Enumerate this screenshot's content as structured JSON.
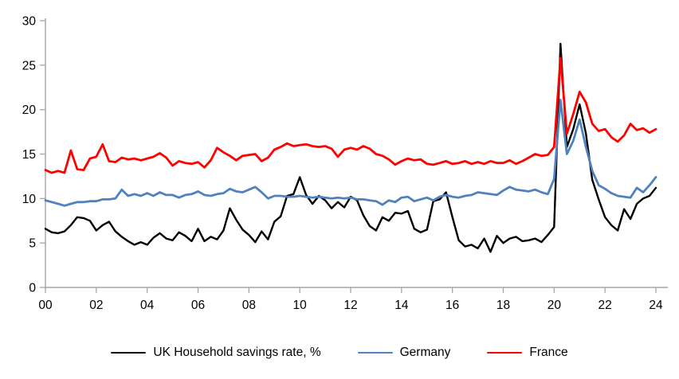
{
  "chart_data": {
    "type": "line",
    "title": "",
    "grid": false,
    "legend_position": "bottom",
    "x_axis": {
      "start_year": 2000,
      "step_years": 0.25,
      "tick_every_quarters": 8,
      "tick_labels": [
        "00",
        "02",
        "04",
        "06",
        "08",
        "10",
        "12",
        "14",
        "16",
        "18",
        "20",
        "22",
        "24"
      ]
    },
    "y_axis": {
      "min": 0,
      "max": 30,
      "tick_interval": 5,
      "tick_labels": [
        "0",
        "5",
        "10",
        "15",
        "20",
        "25",
        "30"
      ]
    },
    "axis_color": "#a6a6a6",
    "series": [
      {
        "name": "UK Household savings rate, %",
        "color": "#000000",
        "stroke_width": 2.4,
        "values": [
          6.6,
          6.2,
          6.1,
          6.3,
          7.0,
          7.9,
          7.8,
          7.5,
          6.4,
          7.0,
          7.4,
          6.3,
          5.7,
          5.2,
          4.8,
          5.1,
          4.8,
          5.6,
          6.1,
          5.5,
          5.3,
          6.2,
          5.8,
          5.2,
          6.6,
          5.2,
          5.7,
          5.4,
          6.4,
          8.9,
          7.6,
          6.5,
          5.9,
          5.1,
          6.3,
          5.4,
          7.4,
          8.0,
          10.3,
          10.5,
          12.4,
          10.4,
          9.4,
          10.3,
          9.8,
          8.9,
          9.6,
          9.0,
          10.2,
          9.8,
          8.1,
          6.9,
          6.4,
          7.9,
          7.5,
          8.4,
          8.3,
          8.6,
          6.6,
          6.2,
          6.5,
          9.7,
          9.9,
          10.7,
          7.9,
          5.3,
          4.6,
          4.8,
          4.4,
          5.5,
          4.0,
          5.8,
          5.0,
          5.5,
          5.7,
          5.2,
          5.3,
          5.5,
          5.1,
          5.9,
          6.8,
          27.4,
          15.8,
          17.8,
          20.6,
          17.3,
          12.1,
          9.9,
          7.9,
          7.0,
          6.4,
          8.8,
          7.7,
          9.4,
          10.0,
          10.3,
          11.2
        ]
      },
      {
        "name": "Germany",
        "color": "#4f81bd",
        "stroke_width": 2.8,
        "values": [
          9.8,
          9.6,
          9.4,
          9.2,
          9.4,
          9.6,
          9.6,
          9.7,
          9.7,
          9.9,
          9.9,
          10.0,
          11.0,
          10.3,
          10.5,
          10.3,
          10.6,
          10.3,
          10.7,
          10.4,
          10.4,
          10.1,
          10.4,
          10.5,
          10.8,
          10.4,
          10.3,
          10.5,
          10.6,
          11.1,
          10.8,
          10.7,
          11.0,
          11.3,
          10.7,
          10.0,
          10.3,
          10.3,
          10.2,
          10.2,
          10.3,
          10.2,
          10.1,
          10.2,
          10.1,
          10.0,
          10.1,
          10.0,
          10.1,
          9.9,
          9.9,
          9.8,
          9.7,
          9.3,
          9.8,
          9.6,
          10.1,
          10.2,
          9.7,
          9.9,
          10.1,
          9.8,
          10.2,
          10.4,
          10.2,
          10.1,
          10.3,
          10.4,
          10.7,
          10.6,
          10.5,
          10.4,
          10.9,
          11.3,
          11.0,
          10.9,
          10.8,
          11.0,
          10.7,
          10.5,
          12.2,
          21.1,
          15.0,
          16.5,
          18.9,
          15.8,
          13.1,
          11.5,
          11.1,
          10.6,
          10.3,
          10.2,
          10.1,
          11.2,
          10.7,
          11.5,
          12.4
        ]
      },
      {
        "name": "France",
        "color": "#ff0000",
        "stroke_width": 2.8,
        "values": [
          13.2,
          12.9,
          13.1,
          12.9,
          15.4,
          13.3,
          13.2,
          14.5,
          14.7,
          16.1,
          14.2,
          14.1,
          14.6,
          14.4,
          14.5,
          14.3,
          14.5,
          14.7,
          15.1,
          14.6,
          13.7,
          14.2,
          14.0,
          13.9,
          14.1,
          13.5,
          14.3,
          15.7,
          15.2,
          14.8,
          14.3,
          14.8,
          14.9,
          15.0,
          14.2,
          14.6,
          15.5,
          15.8,
          16.2,
          15.9,
          16.0,
          16.1,
          15.9,
          15.8,
          15.9,
          15.6,
          14.7,
          15.5,
          15.7,
          15.5,
          15.9,
          15.6,
          15.0,
          14.8,
          14.4,
          13.8,
          14.2,
          14.5,
          14.3,
          14.4,
          13.9,
          13.8,
          14.0,
          14.2,
          13.9,
          14.0,
          14.2,
          13.9,
          14.1,
          13.9,
          14.2,
          14.0,
          14.0,
          14.3,
          13.9,
          14.2,
          14.6,
          15.0,
          14.8,
          14.9,
          15.8,
          25.8,
          17.3,
          19.5,
          22.0,
          20.8,
          18.4,
          17.6,
          17.8,
          16.9,
          16.4,
          17.1,
          18.4,
          17.7,
          17.9,
          17.4,
          17.8
        ]
      }
    ]
  }
}
